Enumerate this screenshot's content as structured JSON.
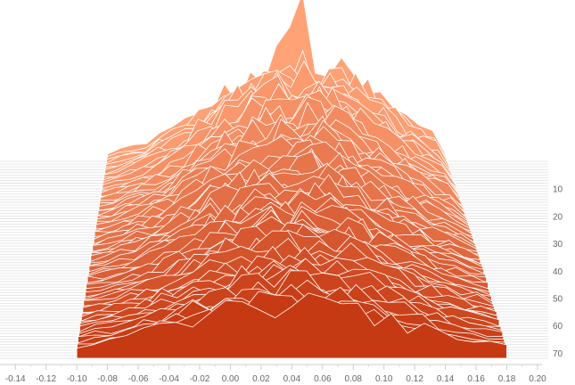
{
  "chart_data": {
    "type": "area",
    "title": "",
    "xlabel": "",
    "ylabel": "",
    "x_ticks": [
      -0.14,
      -0.12,
      -0.1,
      -0.08,
      -0.06,
      -0.04,
      -0.02,
      0.0,
      0.02,
      0.04,
      0.06,
      0.08,
      0.1,
      0.12,
      0.14,
      0.16,
      0.18,
      0.2
    ],
    "x_tick_labels": [
      "-0.14",
      "-0.12",
      "-0.10",
      "-0.08",
      "-0.06",
      "-0.04",
      "-0.02",
      "0.00",
      "0.02",
      "0.04",
      "0.06",
      "0.08",
      "0.10",
      "0.12",
      "0.14",
      "0.16",
      "0.18",
      "0.20"
    ],
    "xlim": [
      -0.15,
      0.2
    ],
    "y_ticks": [
      10,
      20,
      30,
      40,
      50,
      60,
      70
    ],
    "y_tick_labels": [
      "10",
      "20",
      "30",
      "40",
      "50",
      "60",
      "70"
    ],
    "ylim": [
      0,
      73
    ],
    "grid": true,
    "legend": "none",
    "series_count": 73,
    "back_series_x_range": [
      -0.08,
      0.14
    ],
    "front_series_x_range": [
      -0.1,
      0.18
    ],
    "peak": {
      "x": 0.044,
      "series_index": 0
    },
    "colors": {
      "back": "#ffa276",
      "front": "#c63a13",
      "edge": "#ffffff",
      "grid": "#e6e6e6"
    }
  }
}
